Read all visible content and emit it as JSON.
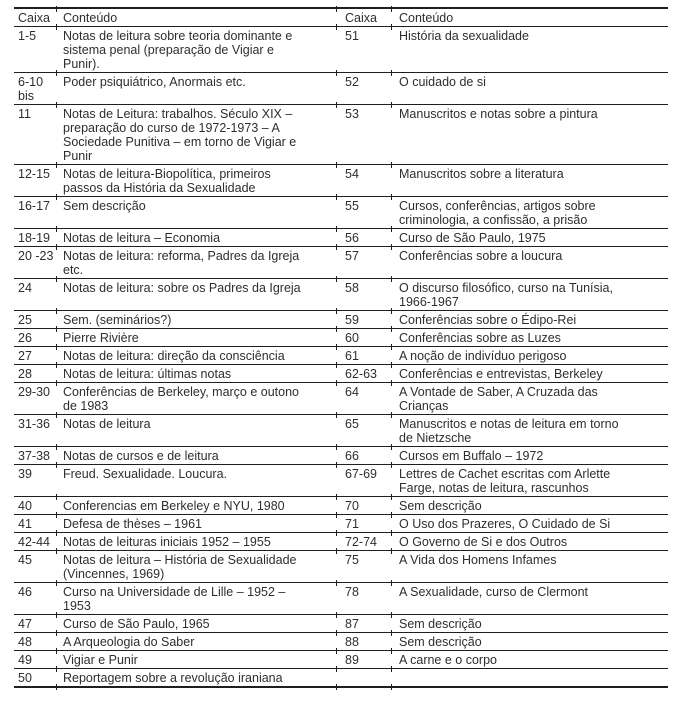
{
  "colors": {
    "background": "#ffffff",
    "text": "#2e2e2e",
    "rule_lines": "#1f1f1f"
  },
  "table": {
    "headers": [
      "Caixa",
      "Conteúdo",
      "Caixa",
      "Conteúdo"
    ],
    "rows": [
      {
        "caixa_left": "1-5",
        "conteudo_left": "Notas de leitura sobre teoria dominante e sistema penal (preparação de Vigiar e Punir).",
        "caixa_right": "51",
        "conteudo_right": "História da sexualidade"
      },
      {
        "caixa_left": "6-10 bis",
        "conteudo_left": "Poder psiquiátrico, Anormais etc.",
        "caixa_right": "52",
        "conteudo_right": "O cuidado de si"
      },
      {
        "caixa_left": "11",
        "conteudo_left": "Notas de Leitura: trabalhos. Século XIX – preparação do curso de 1972-1973 – A Sociedade Punitiva – em torno de Vigiar e Punir",
        "caixa_right": "53",
        "conteudo_right": "Manuscritos e notas sobre a pintura"
      },
      {
        "caixa_left": "12-15",
        "conteudo_left": "Notas de leitura-Biopolítica, primeiros passos da História da Sexualidade",
        "caixa_right": "54",
        "conteudo_right": "Manuscritos sobre a literatura"
      },
      {
        "caixa_left": "16-17",
        "conteudo_left": "Sem descrição",
        "caixa_right": "55",
        "conteudo_right": "Cursos, conferências, artigos sobre criminologia, a confissão, a prisão"
      },
      {
        "caixa_left": "18-19",
        "conteudo_left": "Notas de leitura – Economia",
        "caixa_right": "56",
        "conteudo_right": "Curso de São Paulo, 1975"
      },
      {
        "caixa_left": "20 -23",
        "conteudo_left": "Notas de leitura: reforma, Padres da Igreja etc.",
        "caixa_right": "57",
        "conteudo_right": "Conferências sobre a loucura"
      },
      {
        "caixa_left": "24",
        "conteudo_left": "Notas de leitura: sobre os Padres da Igreja",
        "caixa_right": "58",
        "conteudo_right": "O discurso filosófico, curso na Tunísia, 1966-1967"
      },
      {
        "caixa_left": "25",
        "conteudo_left": "Sem. (seminários?)",
        "caixa_right": "59",
        "conteudo_right": "Conferências sobre o Édipo-Rei"
      },
      {
        "caixa_left": "26",
        "conteudo_left": "Pierre Rivière",
        "caixa_right": "60",
        "conteudo_right": "Conferências sobre as Luzes"
      },
      {
        "caixa_left": "27",
        "conteudo_left": "Notas de leitura: direção da consciência",
        "caixa_right": "61",
        "conteudo_right": "A noção de indivíduo perigoso"
      },
      {
        "caixa_left": "28",
        "conteudo_left": "Notas de leitura: últimas notas",
        "caixa_right": "62-63",
        "conteudo_right": "Conferências e entrevistas, Berkeley"
      },
      {
        "caixa_left": "29-30",
        "conteudo_left": "Conferências de Berkeley, março e outono de 1983",
        "caixa_right": "64",
        "conteudo_right": "A Vontade de Saber, A Cruzada das Crianças"
      },
      {
        "caixa_left": "31-36",
        "conteudo_left": "Notas de leitura",
        "caixa_right": "65",
        "conteudo_right": "Manuscritos e notas de leitura em torno de Nietzsche"
      },
      {
        "caixa_left": "37-38",
        "conteudo_left": "Notas de cursos e de leitura",
        "caixa_right": "66",
        "conteudo_right": "Cursos em Buffalo – 1972"
      },
      {
        "caixa_left": "39",
        "conteudo_left": "Freud. Sexualidade. Loucura.",
        "caixa_right": "67-69",
        "conteudo_right": "Lettres de Cachet escritas com Arlette Farge, notas de leitura, rascunhos"
      },
      {
        "caixa_left": "40",
        "conteudo_left": "Conferencias em Berkeley e NYU, 1980",
        "caixa_right": "70",
        "conteudo_right": "Sem descrição"
      },
      {
        "caixa_left": "41",
        "conteudo_left": "Defesa de thèses – 1961",
        "caixa_right": "71",
        "conteudo_right": "O Uso dos Prazeres, O Cuidado de Si"
      },
      {
        "caixa_left": "42-44",
        "conteudo_left": "Notas de leituras iniciais 1952 – 1955",
        "caixa_right": "72-74",
        "conteudo_right": "O Governo de Si e dos Outros"
      },
      {
        "caixa_left": "45",
        "conteudo_left": "Notas de leitura – História de Sexualidade (Vincennes, 1969)",
        "caixa_right": "75",
        "conteudo_right": "A Vida dos Homens Infames"
      },
      {
        "caixa_left": "46",
        "conteudo_left": "Curso na Universidade de Lille – 1952 – 1953",
        "caixa_right": "78",
        "conteudo_right": "A Sexualidade, curso de Clermont"
      },
      {
        "caixa_left": "47",
        "conteudo_left": "Curso de São Paulo, 1965",
        "caixa_right": "87",
        "conteudo_right": "Sem descrição"
      },
      {
        "caixa_left": "48",
        "conteudo_left": "A Arqueologia do Saber",
        "caixa_right": "88",
        "conteudo_right": "Sem descrição"
      },
      {
        "caixa_left": "49",
        "conteudo_left": "Vigiar e Punir",
        "caixa_right": "89",
        "conteudo_right": "A carne e o corpo"
      },
      {
        "caixa_left": "50",
        "conteudo_left": "Reportagem sobre a revolução iraniana",
        "caixa_right": "",
        "conteudo_right": ""
      }
    ]
  }
}
